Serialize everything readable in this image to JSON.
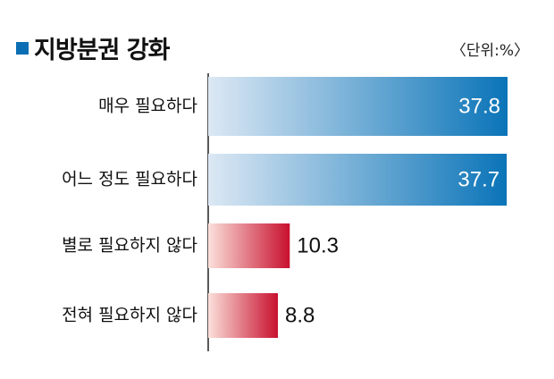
{
  "title": "지방분권 강화",
  "unit": "〈단위:%〉",
  "colors": {
    "accent": "#0c6eb4",
    "blue_start": "#dce8f4",
    "blue_end": "#0a74b8",
    "red_start": "#fbe0da",
    "red_end": "#c8102e"
  },
  "chart_data": {
    "type": "bar",
    "orientation": "horizontal",
    "title": "지방분권 강화",
    "unit": "%",
    "categories": [
      "매우 필요하다",
      "어느 정도 필요하다",
      "별로 필요하지 않다",
      "전혀 필요하지 않다"
    ],
    "values": [
      37.8,
      37.7,
      10.3,
      8.8
    ],
    "value_labels": [
      "37.8",
      "37.7",
      "10.3",
      "8.8"
    ],
    "colors": [
      "blue",
      "blue",
      "red",
      "red"
    ],
    "xlim": [
      0,
      37.8
    ],
    "grid": false,
    "legend": "none"
  }
}
